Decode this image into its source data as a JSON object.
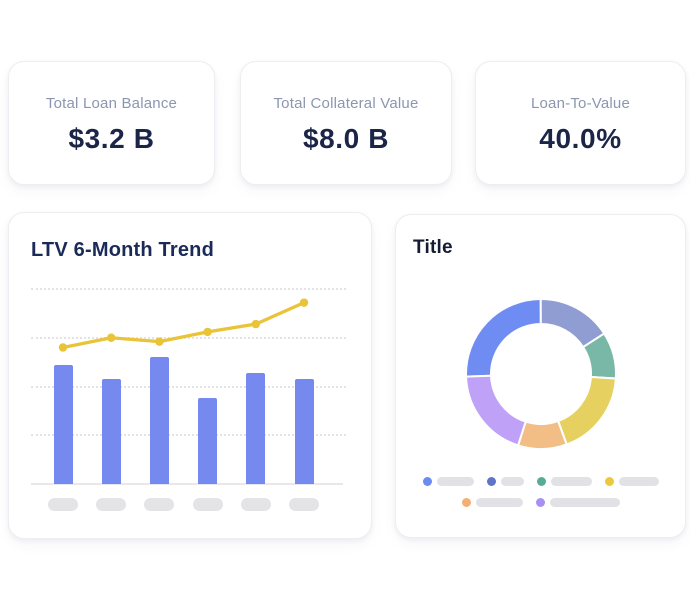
{
  "page": {
    "background": "#ffffff"
  },
  "kpi_cards": [
    {
      "label": "Total Loan Balance",
      "value": "$3.2 B"
    },
    {
      "label": "Total Collateral Value",
      "value": "$8.0 B"
    },
    {
      "label": "Loan-To-Value",
      "value": "40.0%"
    }
  ],
  "trend_card": {
    "title": "LTV 6-Month Trend"
  },
  "donut_card": {
    "title": "Title"
  },
  "chart_data": [
    {
      "type": "bar",
      "title": "LTV 6-Month Trend",
      "categories": [
        "",
        "",
        "",
        "",
        "",
        ""
      ],
      "x_labels": "placeholder-pills",
      "series": [
        {
          "name": "bars",
          "type": "bar",
          "color": "#7689EF",
          "values": [
            61,
            54,
            65,
            44,
            57,
            54
          ]
        },
        {
          "name": "line",
          "type": "line",
          "color": "#E9C437",
          "values": [
            70,
            75,
            73,
            78,
            82,
            93
          ]
        }
      ],
      "ylim": [
        0,
        100
      ],
      "gridlines": [
        25,
        50,
        75,
        100
      ],
      "grid_style": "dotted",
      "legend_position": "none"
    },
    {
      "type": "pie",
      "title": "Title",
      "donut": true,
      "start_angle_deg": 268,
      "segments": [
        {
          "name": "segment-1",
          "value": 25.5,
          "color": "#6F8CF3",
          "legend_dot_color": "#6C8BF2",
          "legend_pill_width": 37
        },
        {
          "name": "segment-2",
          "value": 16.0,
          "color": "#8F9DD3",
          "legend_dot_color": "#5F74C6",
          "legend_pill_width": 23
        },
        {
          "name": "segment-3",
          "value": 10.0,
          "color": "#79B8A6",
          "legend_dot_color": "#57AC99",
          "legend_pill_width": 41
        },
        {
          "name": "segment-4",
          "value": 18.5,
          "color": "#E6D160",
          "legend_dot_color": "#EBC83E",
          "legend_pill_width": 40
        },
        {
          "name": "segment-5",
          "value": 10.5,
          "color": "#F3BE85",
          "legend_dot_color": "#F4AF72",
          "legend_pill_width": 47
        },
        {
          "name": "segment-6",
          "value": 19.5,
          "color": "#BFA2F8",
          "legend_dot_color": "#A690F6",
          "legend_pill_width": 70
        }
      ],
      "legend_position": "bottom",
      "legend_labels": "placeholder-pills",
      "legend_rows": [
        4,
        2
      ]
    }
  ],
  "colors": {
    "card_background": "#FFFFFF",
    "kpi_label": "#8C96B0",
    "kpi_value": "#1B2547",
    "trend_title": "#1B2B58",
    "donut_title": "#141B33",
    "bar": "#7689EF",
    "line": "#E9C437",
    "gridline": "#E2E2E8",
    "axis_baseline": "#E8E8EC",
    "placeholder_pill": "#E4E4E7"
  }
}
